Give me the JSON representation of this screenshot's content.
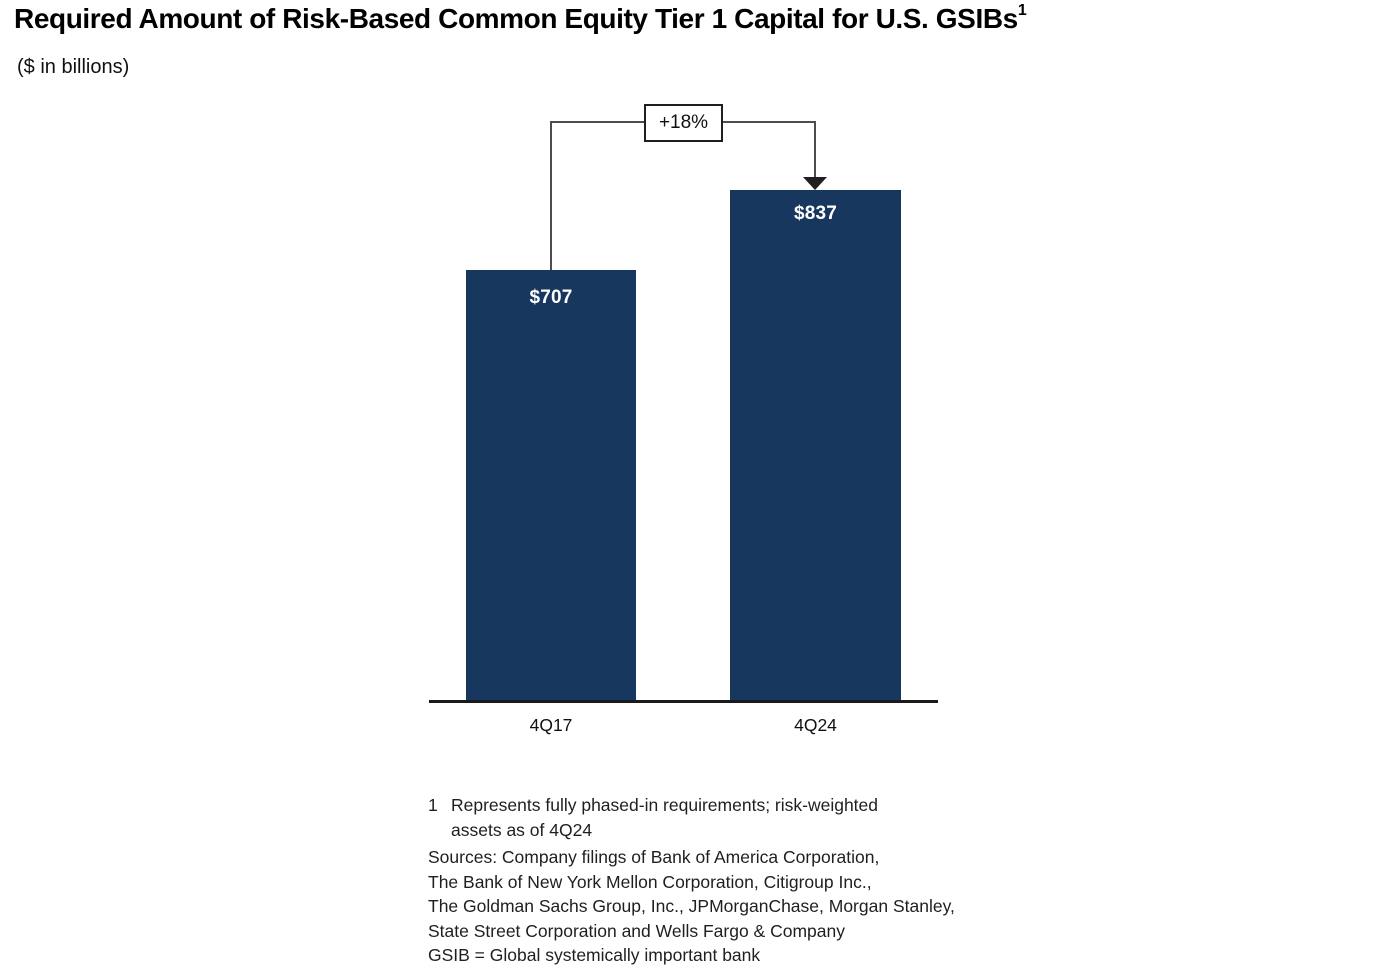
{
  "title": "Required Amount of Risk-Based Common Equity Tier 1 Capital for U.S. GSIBs",
  "title_footnote_marker": "1",
  "subtitle": "($ in billions)",
  "chart_data": {
    "type": "bar",
    "categories": [
      "4Q17",
      "4Q24"
    ],
    "values": [
      707,
      837
    ],
    "bar_labels": [
      "$707",
      "$837"
    ],
    "annotation": {
      "label": "+18%",
      "from": "4Q17",
      "to": "4Q24"
    },
    "title": "Required Amount of Risk-Based Common Equity Tier 1 Capital for U.S. GSIBs",
    "subtitle": "($ in billions)",
    "xlabel": "",
    "ylabel": "",
    "ylim": [
      0,
      850
    ],
    "grid": false,
    "legend": false,
    "bar_color": "#17375E",
    "axis_color": "#1a1a1a",
    "value_label_color": "#ffffff"
  },
  "footnotes": {
    "note1_marker": "1",
    "note1_lines": [
      "Represents fully phased-in requirements; risk-weighted",
      "assets as of 4Q24"
    ],
    "source_lines": [
      "Sources: Company filings of Bank of America Corporation,",
      "The Bank of New York Mellon Corporation, Citigroup Inc.,",
      "The Goldman Sachs Group, Inc., JPMorganChase, Morgan Stanley,",
      "State Street Corporation and Wells Fargo & Company"
    ],
    "definition": "GSIB = Global systemically important bank"
  }
}
